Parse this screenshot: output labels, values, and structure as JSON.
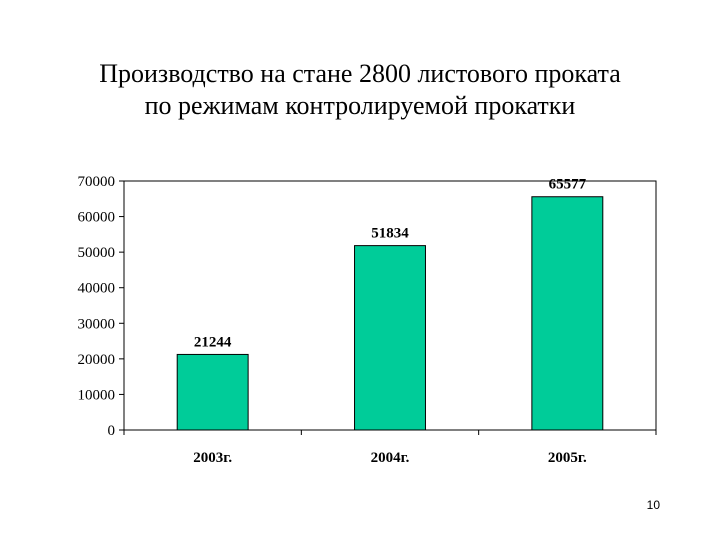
{
  "slide": {
    "title_line1": "Производство на стане 2800 листового проката",
    "title_line2": "по режимам контролируемой прокатки",
    "page_number": "10"
  },
  "chart_data": {
    "type": "bar",
    "categories": [
      "2003г.",
      "2004г.",
      "2005г."
    ],
    "values": [
      21244,
      51834,
      65577
    ],
    "data_labels": [
      "21244",
      "51834",
      "65577"
    ],
    "ylim": [
      0,
      70000
    ],
    "yticks": [
      0,
      10000,
      20000,
      30000,
      40000,
      50000,
      60000,
      70000
    ],
    "ytick_labels": [
      "0",
      "10000",
      "20000",
      "30000",
      "40000",
      "50000",
      "60000",
      "70000"
    ],
    "grid": false,
    "legend": "none",
    "bar_color": "#00cc99"
  }
}
